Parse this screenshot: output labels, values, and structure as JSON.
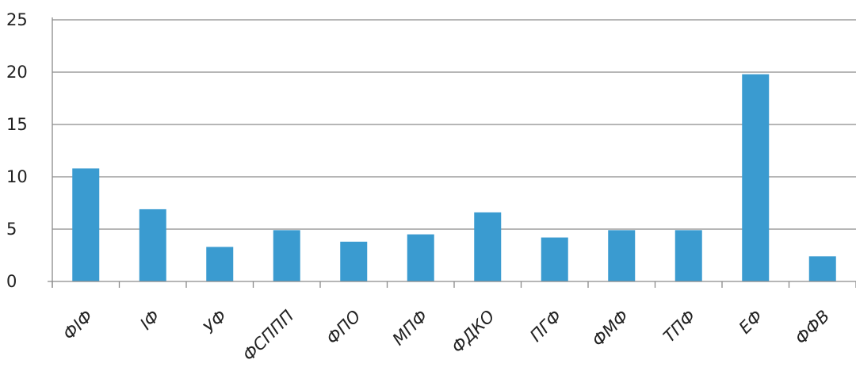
{
  "chart_data": {
    "type": "bar",
    "categories": [
      "ФІФ",
      "ІФ",
      "УФ",
      "ФСППП",
      "ФПО",
      "МПФ",
      "ФДКО",
      "ПГФ",
      "ФМФ",
      "ТПФ",
      "ЕФ",
      "ФФВ"
    ],
    "values": [
      10.8,
      6.9,
      3.3,
      4.9,
      3.8,
      4.5,
      6.6,
      4.2,
      4.9,
      4.9,
      19.8,
      2.4
    ],
    "yticks": [
      "0",
      "5",
      "10",
      "15",
      "20",
      "25"
    ],
    "ylim": [
      0,
      25
    ],
    "grid": true,
    "legend": "none",
    "bar_color": "#3a9bd0"
  }
}
